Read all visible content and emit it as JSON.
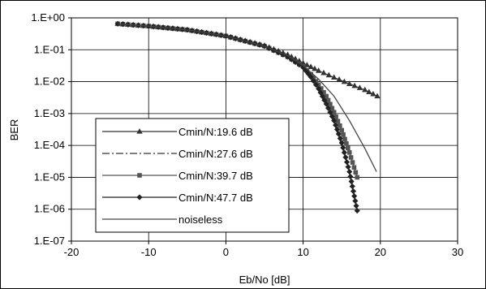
{
  "chart_data": {
    "type": "line",
    "title": "",
    "xlabel": "Eb/No [dB]",
    "ylabel": "BER",
    "xlim": [
      -20,
      30
    ],
    "ylim": [
      1e-07,
      1
    ],
    "yscale": "log",
    "xticks": [
      "-20",
      "-10",
      "0",
      "10",
      "20",
      "30"
    ],
    "yticks": [
      "1.E+00",
      "1.E-01",
      "1.E-02",
      "1.E-03",
      "1.E-04",
      "1.E-05",
      "1.E-06",
      "1.E-07"
    ],
    "grid": "horizontal",
    "legend_position": "bottom-left",
    "series": [
      {
        "name": "Cmin/N:19.6 dB",
        "marker": "triangle",
        "dash": "solid",
        "color": "#333333",
        "x": [
          -14,
          -10,
          -5,
          0,
          5,
          8,
          10,
          12,
          14,
          16,
          18,
          19.6
        ],
        "y": [
          0.65,
          0.55,
          0.42,
          0.27,
          0.135,
          0.07,
          0.038,
          0.022,
          0.0135,
          0.0085,
          0.0055,
          0.0035
        ]
      },
      {
        "name": "Cmin/N:27.6 dB",
        "marker": "none",
        "dash": "dashdot",
        "color": "#333333",
        "x": [
          -14,
          -10,
          -5,
          0,
          5,
          8,
          10,
          11,
          12,
          13,
          14,
          15,
          16,
          17
        ],
        "y": [
          0.65,
          0.55,
          0.42,
          0.27,
          0.13,
          0.06,
          0.028,
          0.014,
          0.006,
          0.002,
          0.0005,
          0.0001,
          1.5e-05,
          1e-06
        ]
      },
      {
        "name": "Cmin/N:39.7 dB",
        "marker": "square",
        "dash": "solid",
        "color": "#555555",
        "x": [
          -14,
          -10,
          -5,
          0,
          5,
          8,
          10,
          11,
          12,
          13,
          14,
          15,
          16,
          17
        ],
        "y": [
          0.65,
          0.55,
          0.42,
          0.27,
          0.13,
          0.06,
          0.03,
          0.017,
          0.008,
          0.0035,
          0.0011,
          0.0003,
          6e-05,
          1e-05
        ]
      },
      {
        "name": "Cmin/N:47.7 dB",
        "marker": "diamond",
        "dash": "solid",
        "color": "#222222",
        "x": [
          -14,
          -10,
          -5,
          0,
          5,
          8,
          10,
          11,
          12,
          13,
          14,
          15,
          16,
          17
        ],
        "y": [
          0.65,
          0.55,
          0.42,
          0.27,
          0.13,
          0.06,
          0.028,
          0.014,
          0.006,
          0.002,
          0.0006,
          0.00012,
          1.5e-05,
          9e-07
        ]
      },
      {
        "name": "noiseless",
        "marker": "none",
        "dash": "solid",
        "color": "#444444",
        "x": [
          -14,
          -10,
          -5,
          0,
          5,
          8,
          10,
          12,
          14,
          16,
          18,
          19.5
        ],
        "y": [
          0.65,
          0.55,
          0.42,
          0.27,
          0.13,
          0.065,
          0.032,
          0.012,
          0.0035,
          0.0006,
          8e-05,
          1.5e-05
        ]
      }
    ]
  }
}
